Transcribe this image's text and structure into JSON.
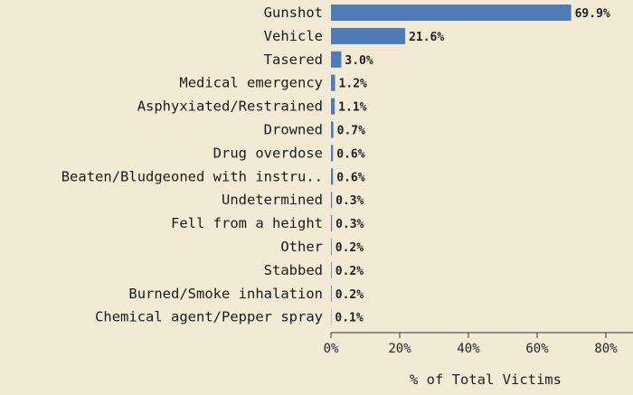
{
  "chart_data": {
    "type": "bar",
    "orientation": "horizontal",
    "categories": [
      "Gunshot",
      "Vehicle",
      "Tasered",
      "Medical emergency",
      "Asphyxiated/Restrained",
      "Drowned",
      "Drug overdose",
      "Beaten/Bludgeoned with instru..",
      "Undetermined",
      "Fell from a height",
      "Other",
      "Stabbed",
      "Burned/Smoke inhalation",
      "Chemical agent/Pepper spray"
    ],
    "values": [
      69.9,
      21.6,
      3.0,
      1.2,
      1.1,
      0.7,
      0.6,
      0.6,
      0.3,
      0.3,
      0.2,
      0.2,
      0.2,
      0.1
    ],
    "value_labels": [
      "69.9%",
      "21.6%",
      "3.0%",
      "1.2%",
      "1.1%",
      "0.7%",
      "0.6%",
      "0.6%",
      "0.3%",
      "0.3%",
      "0.2%",
      "0.2%",
      "0.2%",
      "0.1%"
    ],
    "xlabel": "% of Total Victims",
    "ylabel": "",
    "xlim": [
      0,
      85
    ],
    "xticks": [
      0,
      20,
      40,
      60,
      80
    ],
    "xtick_labels": [
      "0%",
      "20%",
      "40%",
      "60%",
      "80%"
    ],
    "grid": false,
    "bar_color": "#4f7bb8",
    "background_color": "#f3ead6"
  }
}
